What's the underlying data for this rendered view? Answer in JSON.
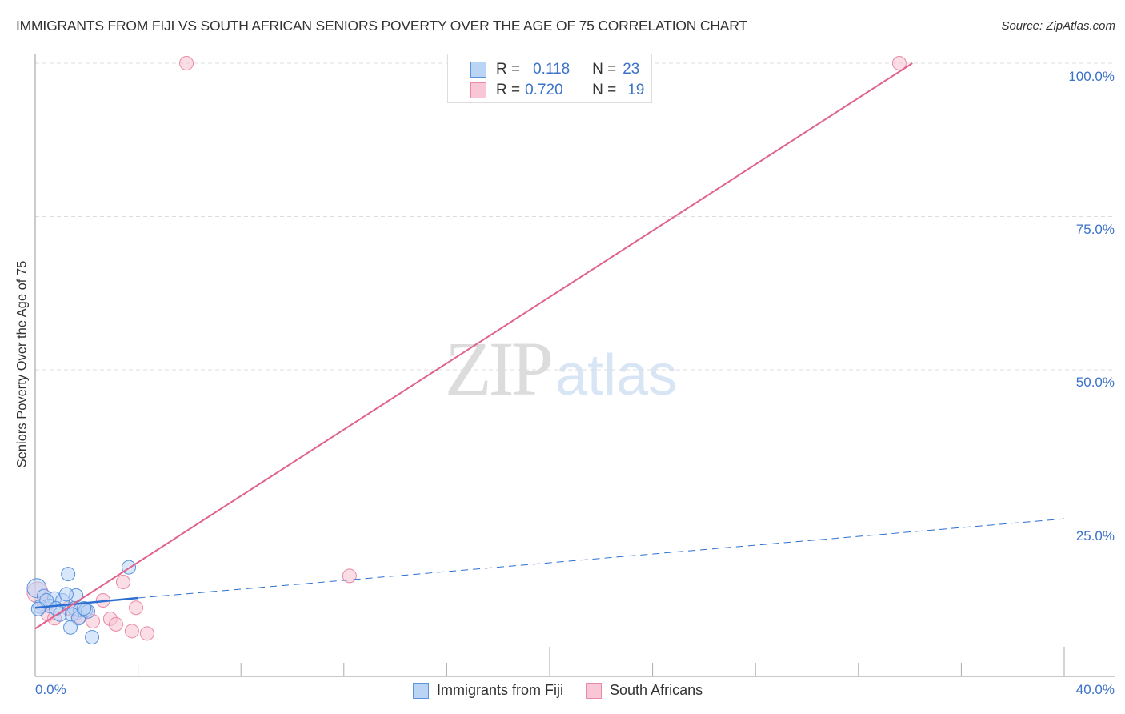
{
  "header": {
    "title": "IMMIGRANTS FROM FIJI VS SOUTH AFRICAN SENIORS POVERTY OVER THE AGE OF 75 CORRELATION CHART",
    "source": "Source: ZipAtlas.com"
  },
  "watermark": {
    "zip": "ZIP",
    "atlas": "atlas"
  },
  "colors": {
    "fiji_fill": "#b9d4f5",
    "fiji_stroke": "#5b93dc",
    "fiji_line": "#2d6fd0",
    "sa_fill": "#f9c6d5",
    "sa_stroke": "#e88aa8",
    "sa_line": "#e0628c",
    "axis_label": "#3c72c8",
    "grid": "#dddddd"
  },
  "legend": {
    "rows": [
      {
        "r_label": "R =",
        "r_value": "0.118",
        "n_label": "N =",
        "n_value": "23"
      },
      {
        "r_label": "R =",
        "r_value": "0.720",
        "n_label": "N =",
        "n_value": "19"
      }
    ]
  },
  "bottom_legend": {
    "items": [
      {
        "label": "Immigrants from Fiji"
      },
      {
        "label": "South Africans"
      }
    ]
  },
  "axes": {
    "y_label": "Seniors Poverty Over the Age of 75",
    "y_ticks": [
      "100.0%",
      "75.0%",
      "50.0%",
      "25.0%"
    ],
    "x_ticks": [
      "0.0%",
      "40.0%"
    ]
  },
  "chart_data": {
    "type": "scatter",
    "title": "IMMIGRANTS FROM FIJI VS SOUTH AFRICAN SENIORS POVERTY OVER THE AGE OF 75 CORRELATION CHART",
    "xlabel": "",
    "ylabel": "Seniors Poverty Over the Age of 75",
    "xlim": [
      0,
      40
    ],
    "ylim": [
      0,
      100
    ],
    "x_tick_labels": [
      "0.0%",
      "40.0%"
    ],
    "y_tick_labels": [
      "25.0%",
      "50.0%",
      "75.0%",
      "100.0%"
    ],
    "grid": true,
    "legend_position": "top-center and bottom",
    "series": [
      {
        "name": "Immigrants from Fiji",
        "R": 0.118,
        "N": 23,
        "points": [
          [
            0.06,
            14.4
          ],
          [
            1.28,
            16.7
          ],
          [
            3.64,
            17.8
          ],
          [
            0.34,
            13.1
          ],
          [
            0.75,
            12.7
          ],
          [
            0.56,
            11.5
          ],
          [
            1.06,
            12.4
          ],
          [
            1.59,
            13.2
          ],
          [
            0.19,
            11.4
          ],
          [
            1.52,
            11.1
          ],
          [
            1.74,
            10.8
          ],
          [
            0.96,
            10.1
          ],
          [
            1.43,
            10.1
          ],
          [
            1.68,
            9.5
          ],
          [
            1.96,
            10.8
          ],
          [
            2.05,
            10.6
          ],
          [
            1.37,
            8.0
          ],
          [
            2.21,
            6.4
          ],
          [
            0.44,
            12.4
          ],
          [
            0.81,
            11.1
          ],
          [
            1.21,
            13.4
          ],
          [
            1.9,
            11.1
          ],
          [
            0.12,
            11.0
          ]
        ],
        "trend": {
          "x0": 0,
          "y0": 11.2,
          "x1": 4.0,
          "y1": 12.8,
          "extended_to_x": 40,
          "extended_y": 25.7
        }
      },
      {
        "name": "South Africans",
        "R": 0.72,
        "N": 19,
        "points": [
          [
            5.88,
            100
          ],
          [
            33.59,
            100
          ],
          [
            12.22,
            16.4
          ],
          [
            3.42,
            15.4
          ],
          [
            2.64,
            12.4
          ],
          [
            3.92,
            11.2
          ],
          [
            0.09,
            13.7
          ],
          [
            0.5,
            10.1
          ],
          [
            0.75,
            9.5
          ],
          [
            1.28,
            11.1
          ],
          [
            1.59,
            10.3
          ],
          [
            2.05,
            10.6
          ],
          [
            2.24,
            9.0
          ],
          [
            2.92,
            9.4
          ],
          [
            3.14,
            8.5
          ],
          [
            3.76,
            7.4
          ],
          [
            4.35,
            7.0
          ],
          [
            1.74,
            9.7
          ],
          [
            0.34,
            11.7
          ]
        ],
        "trend": {
          "x0": 0,
          "y0": 7.8,
          "x1": 34.1,
          "y1": 100
        }
      }
    ]
  }
}
